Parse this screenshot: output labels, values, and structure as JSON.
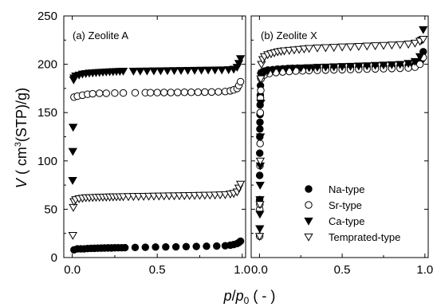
{
  "chart_data": [
    {
      "type": "scatter",
      "panel_label": "(a) Zeolite A",
      "xlabel": "",
      "ylabel": "",
      "xlim": [
        -0.05,
        1.02
      ],
      "ylim": [
        0,
        250
      ],
      "xticks": [
        "0.0",
        "0.5",
        "1.0"
      ],
      "yticks": [
        "0",
        "50",
        "100",
        "150",
        "200",
        "250"
      ],
      "series": [
        {
          "name": "Na-type",
          "marker": "circle-filled",
          "x": [
            0.01,
            0.03,
            0.05,
            0.07,
            0.09,
            0.11,
            0.13,
            0.15,
            0.17,
            0.19,
            0.21,
            0.23,
            0.25,
            0.27,
            0.29,
            0.31,
            0.37,
            0.43,
            0.49,
            0.55,
            0.61,
            0.67,
            0.73,
            0.79,
            0.85,
            0.9,
            0.93,
            0.95,
            0.97,
            0.98,
            0.99
          ],
          "y": [
            8,
            9,
            9,
            9,
            9.3,
            9.5,
            9.6,
            9.7,
            9.8,
            9.9,
            10,
            10,
            10.1,
            10.2,
            10.2,
            10.3,
            10.5,
            10.7,
            10.9,
            11,
            11.1,
            11.3,
            11.5,
            11.7,
            11.9,
            12.2,
            12.8,
            13.5,
            14.5,
            15.5,
            17
          ]
        },
        {
          "name": "Sr-type",
          "marker": "circle-open",
          "x": [
            0.01,
            0.03,
            0.06,
            0.09,
            0.12,
            0.16,
            0.2,
            0.25,
            0.3,
            0.37,
            0.43,
            0.46,
            0.5,
            0.54,
            0.58,
            0.62,
            0.66,
            0.7,
            0.74,
            0.78,
            0.82,
            0.86,
            0.9,
            0.93,
            0.95,
            0.97,
            0.98,
            0.99
          ],
          "y": [
            166,
            167,
            168,
            169,
            169.5,
            170,
            170,
            170.2,
            170.3,
            170.5,
            170.6,
            170.6,
            170.7,
            170.8,
            170.8,
            170.9,
            171,
            171,
            171.1,
            171.2,
            171.3,
            171.5,
            171.8,
            172.5,
            173.5,
            175,
            178,
            182
          ]
        },
        {
          "name": "Ca-type",
          "marker": "triangle-down-filled",
          "x": [
            0.002,
            0.003,
            0.005,
            0.008,
            0.01,
            0.02,
            0.04,
            0.06,
            0.08,
            0.1,
            0.12,
            0.14,
            0.16,
            0.18,
            0.2,
            0.22,
            0.24,
            0.26,
            0.28,
            0.3,
            0.36,
            0.4,
            0.44,
            0.48,
            0.52,
            0.56,
            0.6,
            0.64,
            0.68,
            0.72,
            0.76,
            0.8,
            0.84,
            0.88,
            0.92,
            0.95,
            0.97,
            0.98,
            0.99
          ],
          "y": [
            80,
            110,
            135,
            184,
            186,
            188,
            189,
            190,
            190.5,
            191,
            191.2,
            191.5,
            191.7,
            192,
            192.2,
            192.4,
            192.5,
            192.7,
            192.8,
            193,
            193,
            193.1,
            193.2,
            193.3,
            193.4,
            193.5,
            193.6,
            193.7,
            193.8,
            193.9,
            194,
            194.1,
            194.2,
            194.3,
            194.5,
            195,
            197,
            201,
            206
          ]
        },
        {
          "name": "Temprated-type",
          "marker": "triangle-down-open",
          "x": [
            0.003,
            0.006,
            0.01,
            0.02,
            0.04,
            0.06,
            0.08,
            0.1,
            0.12,
            0.14,
            0.16,
            0.18,
            0.2,
            0.22,
            0.24,
            0.26,
            0.28,
            0.3,
            0.33,
            0.36,
            0.39,
            0.42,
            0.45,
            0.48,
            0.51,
            0.54,
            0.57,
            0.6,
            0.63,
            0.66,
            0.69,
            0.72,
            0.75,
            0.78,
            0.81,
            0.84,
            0.87,
            0.9,
            0.93,
            0.95,
            0.97,
            0.98,
            0.99
          ],
          "y": [
            23,
            52,
            58,
            60,
            61,
            61.5,
            62,
            62,
            62.2,
            62.4,
            62.5,
            62.6,
            62.7,
            62.8,
            62.9,
            63,
            63,
            63.1,
            63.2,
            63.3,
            63.4,
            63.5,
            63.6,
            63.7,
            63.8,
            63.9,
            64,
            64,
            64.1,
            64.2,
            64.3,
            64.4,
            64.5,
            64.6,
            64.7,
            64.8,
            65,
            65.2,
            65.8,
            66.5,
            68,
            72,
            76
          ]
        }
      ]
    },
    {
      "type": "scatter",
      "panel_label": "(b) Zeolite X",
      "xlabel": "",
      "ylabel": "",
      "xlim": [
        -0.05,
        1.02
      ],
      "ylim": [
        0,
        250
      ],
      "xticks": [
        "0.0",
        "0.5",
        "1.0"
      ],
      "legend": "bottom-right",
      "series": [
        {
          "name": "Na-type",
          "marker": "circle-filled",
          "x": [
            0.001,
            0.0013,
            0.0016,
            0.002,
            0.0025,
            0.003,
            0.0035,
            0.004,
            0.005,
            0.006,
            0.008,
            0.01,
            0.03,
            0.05,
            0.08,
            0.11,
            0.14,
            0.17,
            0.2,
            0.23,
            0.27,
            0.31,
            0.35,
            0.4,
            0.45,
            0.5,
            0.55,
            0.6,
            0.65,
            0.7,
            0.75,
            0.8,
            0.85,
            0.9,
            0.94,
            0.97,
            0.98,
            0.99
          ],
          "y": [
            60,
            85,
            108,
            125,
            133,
            140,
            148,
            158,
            168,
            178,
            186,
            191,
            193,
            194,
            194.5,
            195,
            195.3,
            195.6,
            195.8,
            196,
            196.1,
            196.2,
            196.3,
            196.5,
            196.7,
            196.8,
            197,
            197.2,
            197.4,
            197.6,
            197.8,
            198,
            198.3,
            198.7,
            199.5,
            201,
            205,
            213
          ]
        },
        {
          "name": "Sr-type",
          "marker": "circle-open",
          "x": [
            0.001,
            0.0015,
            0.002,
            0.003,
            0.004,
            0.005,
            0.006,
            0.008,
            0.01,
            0.03,
            0.06,
            0.1,
            0.14,
            0.18,
            0.22,
            0.26,
            0.3,
            0.35,
            0.4,
            0.45,
            0.5,
            0.55,
            0.6,
            0.65,
            0.7,
            0.75,
            0.8,
            0.85,
            0.9,
            0.94,
            0.97,
            0.99
          ],
          "y": [
            22,
            50,
            55,
            95,
            118,
            150,
            165,
            173,
            185,
            189,
            190.5,
            191.5,
            192,
            192.5,
            193,
            193.2,
            193.5,
            193.7,
            194,
            194.2,
            194.4,
            194.6,
            194.8,
            195,
            195.2,
            195.4,
            195.6,
            195.8,
            196.2,
            197,
            200,
            207
          ]
        },
        {
          "name": "Ca-type",
          "marker": "triangle-down-filled",
          "x": [
            0.002,
            0.0025,
            0.003,
            0.004,
            0.005,
            0.006,
            0.008,
            0.01,
            0.015,
            0.02,
            0.03,
            0.05,
            0.08,
            0.12,
            0.16,
            0.2,
            0.25,
            0.3,
            0.35,
            0.4,
            0.45,
            0.5,
            0.55,
            0.6,
            0.65,
            0.7,
            0.75,
            0.8,
            0.85,
            0.9,
            0.94,
            0.97,
            0.98,
            0.99
          ],
          "y": [
            30,
            45,
            60,
            75,
            95,
            125,
            160,
            188,
            190,
            191,
            192,
            193,
            194,
            195,
            195.5,
            196,
            196.3,
            196.6,
            197,
            197.2,
            197.5,
            197.8,
            198,
            198.3,
            198.6,
            199,
            199.3,
            199.6,
            200,
            201,
            203,
            208,
            225,
            236
          ]
        },
        {
          "name": "Temprated-type",
          "marker": "triangle-down-open",
          "x": [
            0.001,
            0.003,
            0.005,
            0.008,
            0.012,
            0.02,
            0.03,
            0.05,
            0.07,
            0.09,
            0.11,
            0.13,
            0.15,
            0.18,
            0.21,
            0.24,
            0.27,
            0.3,
            0.35,
            0.4,
            0.45,
            0.5,
            0.55,
            0.6,
            0.65,
            0.7,
            0.75,
            0.8,
            0.85,
            0.9,
            0.94,
            0.97,
            0.99
          ],
          "y": [
            22,
            55,
            100,
            185,
            200,
            205,
            208,
            210,
            211,
            212,
            213,
            213.5,
            214,
            214.5,
            215,
            215.5,
            216,
            216.5,
            217,
            217.3,
            217.6,
            218,
            218.3,
            218.6,
            219,
            219.3,
            219.6,
            220,
            220.4,
            221,
            222,
            224,
            226
          ]
        }
      ]
    }
  ],
  "axes": {
    "ylabel_parts": [
      "V",
      " ( cm",
      "3",
      "(STP)/g)"
    ],
    "xlabel_parts": [
      "p",
      "/",
      "p",
      "0",
      " ( - )"
    ]
  }
}
